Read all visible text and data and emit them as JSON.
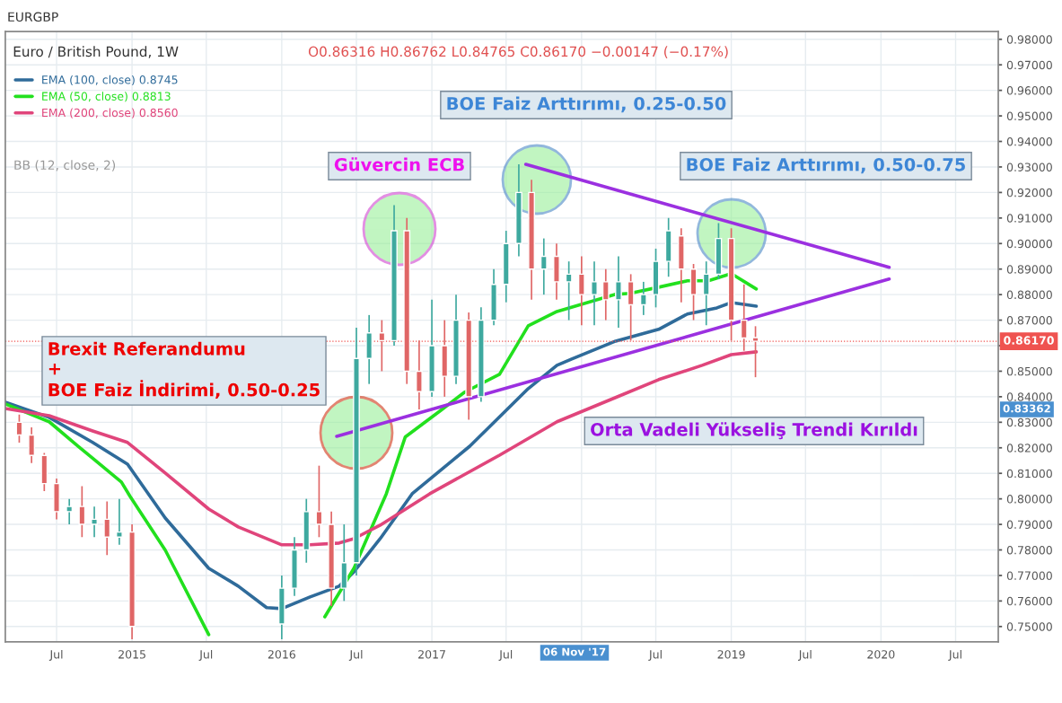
{
  "chart_data": {
    "type": "candlestick",
    "title": "Euro / British Pound, 1W",
    "subtitle": "O0.86316 H0.86762 L0.84765 C0.86170 −0.00147 (−0.17%)",
    "x": [
      "2014-04-01",
      "2014-05-01",
      "2014-06-01",
      "2014-07-01",
      "2014-08-01",
      "2014-09-01",
      "2014-10-01",
      "2014-11-01",
      "2014-12-01",
      "2015-01-01",
      "2016-01-01",
      "2016-02-01",
      "2016-03-01",
      "2016-04-01",
      "2016-05-01",
      "2016-06-01",
      "2016-07-01",
      "2016-08-01",
      "2016-09-01",
      "2016-10-01",
      "2016-11-01",
      "2016-12-01",
      "2017-01-01",
      "2017-02-01",
      "2017-03-01",
      "2017-04-01",
      "2017-05-01",
      "2017-06-01",
      "2017-07-01",
      "2017-08-01",
      "2017-09-01",
      "2017-10-01",
      "2017-11-01",
      "2017-12-01",
      "2018-01-01",
      "2018-02-01",
      "2018-03-01",
      "2018-04-01",
      "2018-05-01",
      "2018-06-01",
      "2018-07-01",
      "2018-08-01",
      "2018-09-01",
      "2018-10-01",
      "2018-11-01",
      "2018-12-01",
      "2019-01-01",
      "2019-02-01",
      "2019-03-01"
    ],
    "ohlc": [
      [
        0.83,
        0.833,
        0.822,
        0.825
      ],
      [
        0.825,
        0.828,
        0.814,
        0.817
      ],
      [
        0.817,
        0.818,
        0.803,
        0.806
      ],
      [
        0.806,
        0.808,
        0.792,
        0.795
      ],
      [
        0.795,
        0.8,
        0.79,
        0.797
      ],
      [
        0.797,
        0.805,
        0.785,
        0.79
      ],
      [
        0.79,
        0.797,
        0.785,
        0.792
      ],
      [
        0.792,
        0.799,
        0.778,
        0.785
      ],
      [
        0.785,
        0.8,
        0.782,
        0.787
      ],
      [
        0.787,
        0.79,
        0.745,
        0.75
      ],
      [
        0.751,
        0.77,
        0.745,
        0.765
      ],
      [
        0.765,
        0.785,
        0.762,
        0.78
      ],
      [
        0.78,
        0.8,
        0.775,
        0.795
      ],
      [
        0.795,
        0.813,
        0.785,
        0.79
      ],
      [
        0.79,
        0.795,
        0.758,
        0.765
      ],
      [
        0.765,
        0.79,
        0.76,
        0.775
      ],
      [
        0.775,
        0.867,
        0.77,
        0.855
      ],
      [
        0.855,
        0.872,
        0.845,
        0.865
      ],
      [
        0.865,
        0.87,
        0.85,
        0.862
      ],
      [
        0.862,
        0.915,
        0.86,
        0.905
      ],
      [
        0.905,
        0.91,
        0.845,
        0.85
      ],
      [
        0.85,
        0.862,
        0.835,
        0.842
      ],
      [
        0.842,
        0.878,
        0.84,
        0.86
      ],
      [
        0.86,
        0.87,
        0.84,
        0.848
      ],
      [
        0.848,
        0.88,
        0.845,
        0.87
      ],
      [
        0.87,
        0.873,
        0.831,
        0.84
      ],
      [
        0.84,
        0.875,
        0.838,
        0.87
      ],
      [
        0.87,
        0.89,
        0.868,
        0.884
      ],
      [
        0.884,
        0.905,
        0.877,
        0.9
      ],
      [
        0.9,
        0.931,
        0.895,
        0.92
      ],
      [
        0.92,
        0.925,
        0.878,
        0.89
      ],
      [
        0.89,
        0.902,
        0.88,
        0.895
      ],
      [
        0.895,
        0.9,
        0.878,
        0.885
      ],
      [
        0.885,
        0.893,
        0.87,
        0.888
      ],
      [
        0.888,
        0.895,
        0.868,
        0.88
      ],
      [
        0.88,
        0.893,
        0.868,
        0.885
      ],
      [
        0.885,
        0.89,
        0.87,
        0.878
      ],
      [
        0.878,
        0.895,
        0.867,
        0.885
      ],
      [
        0.885,
        0.888,
        0.862,
        0.876
      ],
      [
        0.876,
        0.885,
        0.872,
        0.88
      ],
      [
        0.88,
        0.898,
        0.875,
        0.893
      ],
      [
        0.893,
        0.91,
        0.887,
        0.905
      ],
      [
        0.903,
        0.906,
        0.877,
        0.89
      ],
      [
        0.89,
        0.892,
        0.87,
        0.88
      ],
      [
        0.88,
        0.893,
        0.868,
        0.888
      ],
      [
        0.888,
        0.908,
        0.886,
        0.902
      ],
      [
        0.902,
        0.906,
        0.862,
        0.87
      ],
      [
        0.87,
        0.884,
        0.858,
        0.863
      ],
      [
        0.86316,
        0.86762,
        0.84765,
        0.8617
      ]
    ],
    "series": [
      {
        "name": "EMA (100, close) 0.8745",
        "type": "line",
        "color": "#2f6b9a",
        "x": [
          "2014-02-26",
          "2014-06-13",
          "2014-09-27",
          "2014-12-21",
          "2015-03-23",
          "2015-07-07",
          "2015-09-17",
          "2015-11-25",
          "2016-01-01",
          "2016-03-10",
          "2016-05-20",
          "2016-06-25",
          "2016-08-28",
          "2016-11-14",
          "2017-04-04",
          "2017-08-24",
          "2017-11-02",
          "2017-12-08",
          "2018-03-25",
          "2018-07-08",
          "2018-09-16",
          "2018-11-27",
          "2019-01-01",
          "2019-03-03"
        ],
        "values": [
          0.8379,
          0.8319,
          0.8221,
          0.8136,
          0.7925,
          0.7728,
          0.7658,
          0.7574,
          0.757,
          0.7616,
          0.7658,
          0.7714,
          0.7844,
          0.802,
          0.8207,
          0.8432,
          0.8523,
          0.8548,
          0.8618,
          0.8664,
          0.8724,
          0.8748,
          0.8769,
          0.8755
        ]
      },
      {
        "name": "EMA (50, close) 0.8813",
        "type": "line",
        "color": "#22e01e",
        "x": [
          "2014-02-26",
          "2014-06-13",
          "2014-08-22",
          "2014-12-06",
          "2014-12-27",
          "2015-03-23",
          "2015-07-07",
          "2015-10-15",
          "2016-04-15",
          "2016-06-25",
          "2016-09-12",
          "2016-10-28",
          "2017-01-23",
          "2017-03-22",
          "2017-06-15",
          "2017-08-24",
          "2017-11-02",
          "2018-03-25",
          "2018-04-29",
          "2018-07-08",
          "2018-09-16",
          "2018-11-06",
          "2019-01-01",
          "2019-03-03"
        ],
        "values": [
          0.8372,
          0.8302,
          0.8207,
          0.8066,
          0.801,
          0.7799,
          0.7468,
          null,
          0.7538,
          0.7728,
          0.802,
          0.8242,
          0.8347,
          0.8418,
          0.8488,
          0.8678,
          0.8734,
          0.8801,
          0.8805,
          0.8829,
          0.8854,
          0.8854,
          0.8882,
          0.8822
        ]
      },
      {
        "name": "EMA (200, close) 0.8560",
        "type": "line",
        "color": "#e0457b",
        "x": [
          "2014-02-26",
          "2014-06-13",
          "2014-09-27",
          "2014-12-21",
          "2015-03-23",
          "2015-07-07",
          "2015-09-17",
          "2016-01-01",
          "2016-03-10",
          "2016-05-20",
          "2016-06-25",
          "2016-08-28",
          "2016-12-27",
          "2017-06-15",
          "2017-11-02",
          "2018-03-25",
          "2018-07-08",
          "2018-10-22",
          "2019-01-01",
          "2019-03-03"
        ],
        "values": [
          0.8354,
          0.8326,
          0.8266,
          0.8221,
          0.8101,
          0.796,
          0.789,
          0.782,
          0.782,
          0.7827,
          0.7844,
          0.7897,
          0.802,
          0.8171,
          0.8302,
          0.8397,
          0.8467,
          0.8523,
          0.8565,
          0.8576
        ]
      },
      {
        "type": "line",
        "color": "#9b30e0",
        "x": [
          "2016-05-14",
          "2020-01-21"
        ],
        "values": [
          0.8245,
          0.8861
        ]
      },
      {
        "type": "line",
        "color": "#9b30e0",
        "x": [
          "2017-08-18",
          "2020-01-21"
        ],
        "values": [
          0.931,
          0.8907
        ]
      }
    ],
    "annotations": [
      "EURGBP",
      "BB (12, close, 2)",
      "Güvercin ECB",
      "BOE Faiz Arttırımı, 0.25-0.50",
      "BOE Faiz Arttırımı, 0.50-0.75",
      "Brexit Referandumu\n+\nBOE Faiz İndirimi, 0.50-0.25",
      "Orta Vadeli Yükseliş Trendi Kırıldı",
      "0.83362",
      "06 Nov '17"
    ],
    "ref_lines": [
      {
        "axis": "y",
        "value": 0.8617,
        "label": "0.86170",
        "color": "#ef5350",
        "line_style": "dotted"
      }
    ],
    "xlim": [
      "2014-02-26",
      "2020-10-13"
    ],
    "xticks": [
      {
        "value": "2014-07-01",
        "label": "Jul"
      },
      {
        "value": "2015-01-01",
        "label": "2015"
      },
      {
        "value": "2015-07-01",
        "label": "Jul"
      },
      {
        "value": "2016-01-01",
        "label": "2016"
      },
      {
        "value": "2016-07-01",
        "label": "Jul"
      },
      {
        "value": "2017-01-01",
        "label": "2017"
      },
      {
        "value": "2017-07-01",
        "label": "Jul"
      },
      {
        "value": "2018-01-01",
        "label": null
      },
      {
        "value": "2018-07-01",
        "label": "Jul"
      },
      {
        "value": "2019-01-01",
        "label": "2019"
      },
      {
        "value": "2019-07-01",
        "label": "Jul"
      },
      {
        "value": "2020-01-01",
        "label": "2020"
      },
      {
        "value": "2020-07-01",
        "label": "Jul"
      }
    ],
    "ylim": [
      0.744,
      0.983
    ],
    "yticks": [
      {
        "value": 0.75,
        "label": "0.75000"
      },
      {
        "value": 0.76,
        "label": "0.76000"
      },
      {
        "value": 0.77,
        "label": "0.77000"
      },
      {
        "value": 0.78,
        "label": "0.78000"
      },
      {
        "value": 0.79,
        "label": "0.79000"
      },
      {
        "value": 0.8,
        "label": "0.80000"
      },
      {
        "value": 0.81,
        "label": "0.81000"
      },
      {
        "value": 0.82,
        "label": "0.82000"
      },
      {
        "value": 0.83,
        "label": "0.83000"
      },
      {
        "value": 0.84,
        "label": "0.84000"
      },
      {
        "value": 0.85,
        "label": "0.85000"
      },
      {
        "value": 0.86,
        "label": null
      },
      {
        "value": 0.87,
        "label": "0.87000"
      },
      {
        "value": 0.88,
        "label": "0.88000"
      },
      {
        "value": 0.89,
        "label": "0.89000"
      },
      {
        "value": 0.9,
        "label": "0.90000"
      },
      {
        "value": 0.91,
        "label": "0.91000"
      },
      {
        "value": 0.92,
        "label": "0.92000"
      },
      {
        "value": 0.93,
        "label": "0.93000"
      },
      {
        "value": 0.94,
        "label": "0.94000"
      },
      {
        "value": 0.95,
        "label": "0.95000"
      },
      {
        "value": 0.96,
        "label": "0.96000"
      },
      {
        "value": 0.97,
        "label": "0.97000"
      },
      {
        "value": 0.98,
        "label": "0.98000"
      }
    ],
    "grid": true,
    "legend": "top left"
  }
}
